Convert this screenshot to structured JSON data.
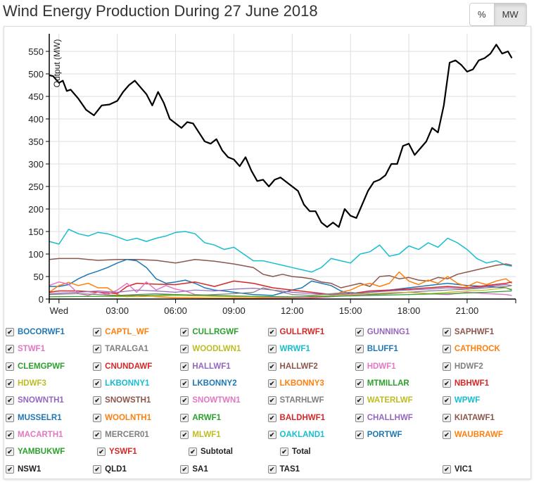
{
  "title": "Wind Energy Production During 27 June 2018",
  "toggle": {
    "percent_label": "%",
    "mw_label": "MW",
    "active": "MW"
  },
  "chart_data": {
    "type": "line",
    "title": "Wind Energy Production During 27 June 2018",
    "ylabel": "Output (MW)",
    "xlabel": "",
    "ylim": [
      0,
      570
    ],
    "xlim_hours": [
      -0.5,
      23.5
    ],
    "yticks": [
      0,
      50,
      100,
      150,
      200,
      250,
      300,
      350,
      400,
      450,
      500,
      550
    ],
    "xticks": [
      {
        "h": 0,
        "label": "Wed"
      },
      {
        "h": 3,
        "label": "03:00"
      },
      {
        "h": 6,
        "label": "06:00"
      },
      {
        "h": 9,
        "label": "09:00"
      },
      {
        "h": 12,
        "label": "12:00"
      },
      {
        "h": 15,
        "label": "15:00"
      },
      {
        "h": 18,
        "label": "18:00"
      },
      {
        "h": 21,
        "label": "21:00"
      }
    ],
    "grid": true,
    "series": [
      {
        "name": "Total",
        "color": "#000000",
        "width": 2.2,
        "x": [
          -0.5,
          -0.3,
          0,
          0.2,
          0.4,
          0.6,
          1.0,
          1.4,
          1.8,
          2.2,
          2.6,
          3.0,
          3.3,
          3.6,
          3.9,
          4.2,
          4.5,
          4.8,
          5.1,
          5.4,
          5.7,
          6.0,
          6.3,
          6.6,
          6.9,
          7.2,
          7.5,
          7.8,
          8.1,
          8.4,
          8.7,
          9.0,
          9.3,
          9.6,
          9.9,
          10.2,
          10.5,
          10.8,
          11.1,
          11.4,
          11.7,
          12.0,
          12.3,
          12.6,
          12.9,
          13.2,
          13.5,
          13.8,
          14.1,
          14.4,
          14.7,
          15.0,
          15.3,
          15.6,
          15.9,
          16.2,
          16.5,
          16.8,
          17.1,
          17.4,
          17.7,
          18.0,
          18.3,
          18.6,
          18.9,
          19.2,
          19.5,
          19.8,
          20.1,
          20.4,
          20.7,
          21.0,
          21.3,
          21.6,
          21.9,
          22.2,
          22.5,
          22.8,
          23.1,
          23.3
        ],
        "y": [
          497,
          495,
          480,
          485,
          462,
          465,
          445,
          420,
          408,
          430,
          432,
          440,
          460,
          475,
          485,
          470,
          455,
          430,
          460,
          435,
          400,
          390,
          380,
          393,
          390,
          370,
          350,
          345,
          355,
          330,
          315,
          310,
          295,
          315,
          285,
          262,
          265,
          250,
          265,
          270,
          260,
          250,
          240,
          210,
          195,
          195,
          170,
          160,
          170,
          160,
          200,
          185,
          180,
          210,
          240,
          260,
          265,
          275,
          300,
          300,
          340,
          345,
          320,
          335,
          350,
          380,
          370,
          430,
          525,
          530,
          520,
          505,
          510,
          530,
          535,
          545,
          565,
          545,
          550,
          535
        ]
      },
      {
        "name": "WPWF",
        "color": "#17becf",
        "width": 1.5,
        "x": [
          -0.5,
          0,
          0.5,
          1,
          1.5,
          2,
          2.5,
          3,
          3.5,
          4,
          4.5,
          5,
          5.5,
          6,
          6.5,
          7,
          7.5,
          8,
          8.5,
          9,
          9.5,
          10,
          10.5,
          11,
          11.5,
          12,
          12.5,
          13,
          13.5,
          14,
          14.5,
          15,
          15.5,
          16,
          16.5,
          17,
          17.5,
          18,
          18.5,
          19,
          19.5,
          20,
          20.5,
          21,
          21.5,
          22,
          22.5,
          23,
          23.3
        ],
        "y": [
          128,
          122,
          155,
          145,
          140,
          148,
          145,
          138,
          130,
          135,
          128,
          135,
          140,
          148,
          150,
          145,
          125,
          120,
          110,
          115,
          100,
          85,
          85,
          80,
          75,
          70,
          65,
          60,
          70,
          90,
          85,
          80,
          100,
          105,
          120,
          95,
          100,
          118,
          110,
          125,
          115,
          135,
          125,
          110,
          90,
          80,
          85,
          75,
          73
        ]
      },
      {
        "name": "SAPHWF1",
        "color": "#8c564b",
        "width": 1.5,
        "x": [
          -0.5,
          0,
          1,
          2,
          3,
          4,
          5,
          6,
          7,
          8,
          9,
          10,
          10.5,
          11,
          11.5,
          12,
          12.5,
          13,
          13.5,
          14,
          14.5,
          15,
          15.5,
          16,
          16.5,
          17,
          17.5,
          18,
          18.5,
          19,
          19.5,
          20,
          20.5,
          21,
          21.5,
          22,
          22.5,
          23,
          23.3
        ],
        "y": [
          88,
          90,
          90,
          86,
          88,
          88,
          86,
          80,
          88,
          84,
          78,
          70,
          55,
          50,
          55,
          50,
          48,
          45,
          38,
          35,
          25,
          30,
          35,
          28,
          50,
          52,
          45,
          48,
          42,
          40,
          48,
          45,
          55,
          60,
          65,
          70,
          75,
          78,
          75
        ]
      },
      {
        "name": "BOCORWF1",
        "color": "#1f77b4",
        "width": 1.5,
        "x": [
          -0.5,
          0,
          0.5,
          1,
          1.5,
          2,
          2.5,
          3,
          3.5,
          4,
          4.5,
          5,
          5.5,
          6,
          6.5,
          7,
          7.5,
          8,
          8.5,
          9,
          10,
          11,
          12,
          12.5,
          13,
          13.5,
          14,
          14.5,
          15,
          16,
          17,
          18,
          19,
          20,
          21,
          22,
          23,
          23.3
        ],
        "y": [
          28,
          28,
          32,
          45,
          55,
          62,
          70,
          80,
          88,
          85,
          70,
          45,
          35,
          38,
          42,
          35,
          25,
          20,
          18,
          15,
          10,
          8,
          20,
          25,
          40,
          35,
          30,
          18,
          12,
          15,
          20,
          25,
          30,
          35,
          30,
          28,
          25,
          20
        ]
      },
      {
        "name": "CATHROCK",
        "color": "#ff7f0e",
        "width": 1.5,
        "x": [
          -0.5,
          0,
          0.5,
          1,
          1.5,
          2,
          2.5,
          3,
          3.5,
          4,
          5,
          6,
          8,
          10,
          12,
          14,
          14.5,
          15,
          15.5,
          16,
          16.5,
          17,
          17.5,
          18,
          18.5,
          19,
          19.5,
          20,
          20.5,
          21,
          21.5,
          22,
          22.5,
          23,
          23.3
        ],
        "y": [
          15,
          30,
          37,
          30,
          35,
          25,
          25,
          10,
          5,
          8,
          5,
          3,
          2,
          2,
          2,
          5,
          15,
          20,
          30,
          35,
          28,
          35,
          60,
          40,
          32,
          42,
          35,
          50,
          35,
          28,
          38,
          32,
          40,
          45,
          35
        ]
      },
      {
        "name": "GULLRWF1",
        "color": "#d62728",
        "width": 1.5,
        "x": [
          -0.5,
          0,
          1,
          2,
          3,
          3.5,
          4,
          5,
          6,
          7,
          8,
          9,
          10,
          11,
          12,
          13,
          14,
          15,
          16,
          17,
          18,
          19,
          20,
          21,
          22,
          23,
          23.3
        ],
        "y": [
          15,
          18,
          18,
          15,
          12,
          28,
          35,
          33,
          32,
          38,
          28,
          40,
          35,
          25,
          20,
          15,
          10,
          12,
          18,
          20,
          22,
          25,
          28,
          25,
          30,
          35,
          38
        ]
      },
      {
        "name": "HDWF1",
        "color": "#e377c2",
        "width": 1.5,
        "x": [
          -0.5,
          0,
          0.5,
          1,
          1.5,
          2,
          2.5,
          3,
          3.5,
          4,
          4.5,
          5,
          5.5,
          6,
          6.5,
          7,
          8,
          9,
          10,
          11,
          12,
          13,
          14,
          15,
          16,
          17,
          18,
          19,
          20,
          21,
          22,
          23,
          23.3
        ],
        "y": [
          30,
          38,
          33,
          12,
          8,
          15,
          10,
          20,
          35,
          15,
          38,
          20,
          30,
          22,
          18,
          10,
          8,
          5,
          5,
          3,
          3,
          2,
          5,
          8,
          10,
          12,
          15,
          12,
          10,
          15,
          12,
          10,
          8
        ]
      },
      {
        "name": "GUNNING1",
        "color": "#9467bd",
        "width": 1.2,
        "x": [
          -0.5,
          1,
          2,
          3,
          4,
          5,
          6,
          7,
          8,
          9,
          10,
          11,
          12,
          13,
          14,
          15,
          16,
          17,
          18,
          19,
          20,
          21,
          22,
          23,
          23.3
        ],
        "y": [
          12,
          15,
          18,
          15,
          20,
          18,
          15,
          20,
          18,
          22,
          24,
          20,
          15,
          12,
          10,
          12,
          15,
          18,
          20,
          22,
          25,
          22,
          28,
          32,
          30
        ]
      },
      {
        "name": "TARALGA1",
        "color": "#7f7f7f",
        "width": 1.2,
        "x": [
          -0.5,
          1,
          2,
          3,
          4,
          5,
          6,
          7,
          8,
          9,
          10,
          10.5,
          11,
          12,
          13,
          14,
          15,
          16,
          17,
          18,
          19,
          20,
          21,
          22,
          23,
          23.3
        ],
        "y": [
          10,
          12,
          10,
          8,
          10,
          12,
          10,
          8,
          10,
          12,
          15,
          25,
          20,
          10,
          8,
          12,
          15,
          10,
          12,
          15,
          18,
          20,
          22,
          25,
          28,
          30
        ]
      },
      {
        "name": "WOODLWN1",
        "color": "#bcbd22",
        "width": 1.2,
        "x": [
          -0.5,
          2,
          4,
          6,
          8,
          10,
          12,
          14,
          15,
          16,
          17,
          18,
          19,
          20,
          21,
          22,
          23,
          23.3
        ],
        "y": [
          5,
          6,
          5,
          8,
          6,
          5,
          4,
          8,
          10,
          12,
          14,
          15,
          12,
          15,
          18,
          20,
          25,
          22
        ]
      },
      {
        "name": "CLEMGPWF",
        "color": "#2ca02c",
        "width": 1.2,
        "x": [
          -0.5,
          2,
          4,
          6,
          8,
          10,
          12,
          14,
          16,
          18,
          20,
          22,
          23.3
        ],
        "y": [
          5,
          6,
          8,
          10,
          8,
          6,
          5,
          6,
          8,
          10,
          12,
          15,
          18
        ]
      }
    ],
    "legend": {
      "placement": "bottom",
      "rows": [
        [
          {
            "name": "BOCORWF1",
            "color": "#1f77b4"
          },
          {
            "name": "CAPTL_WF",
            "color": "#ff7f0e"
          },
          {
            "name": "CULLRGWF",
            "color": "#2ca02c"
          },
          {
            "name": "GULLRWF1",
            "color": "#d62728"
          },
          {
            "name": "GUNNING1",
            "color": "#9467bd"
          },
          {
            "name": "SAPHWF1",
            "color": "#8c564b"
          }
        ],
        [
          {
            "name": "STWF1",
            "color": "#e377c2"
          },
          {
            "name": "TARALGA1",
            "color": "#7f7f7f"
          },
          {
            "name": "WOODLWN1",
            "color": "#bcbd22"
          },
          {
            "name": "WRWF1",
            "color": "#17becf"
          },
          {
            "name": "BLUFF1",
            "color": "#1f77b4"
          },
          {
            "name": "CATHROCK",
            "color": "#ff7f0e"
          }
        ],
        [
          {
            "name": "CLEMGPWF",
            "color": "#2ca02c"
          },
          {
            "name": "CNUNDAWF",
            "color": "#d62728"
          },
          {
            "name": "HALLWF1",
            "color": "#9467bd"
          },
          {
            "name": "HALLWF2",
            "color": "#8c564b"
          },
          {
            "name": "HDWF1",
            "color": "#e377c2"
          },
          {
            "name": "HDWF2",
            "color": "#7f7f7f"
          }
        ],
        [
          {
            "name": "HDWF3",
            "color": "#bcbd22"
          },
          {
            "name": "LKBONNY1",
            "color": "#17becf"
          },
          {
            "name": "LKBONNY2",
            "color": "#1f77b4"
          },
          {
            "name": "LKBONNY3",
            "color": "#ff7f0e"
          },
          {
            "name": "MTMILLAR",
            "color": "#2ca02c"
          },
          {
            "name": "NBHWF1",
            "color": "#d62728"
          }
        ],
        [
          {
            "name": "SNOWNTH1",
            "color": "#9467bd"
          },
          {
            "name": "SNOWSTH1",
            "color": "#8c564b"
          },
          {
            "name": "SNOWTWN1",
            "color": "#e377c2"
          },
          {
            "name": "STARHLWF",
            "color": "#7f7f7f"
          },
          {
            "name": "WATERLWF",
            "color": "#bcbd22"
          },
          {
            "name": "WPWF",
            "color": "#17becf"
          }
        ],
        [
          {
            "name": "MUSSELR1",
            "color": "#1f77b4"
          },
          {
            "name": "WOOLNTH1",
            "color": "#ff7f0e"
          },
          {
            "name": "ARWF1",
            "color": "#2ca02c"
          },
          {
            "name": "BALDHWF1",
            "color": "#d62728"
          },
          {
            "name": "CHALLHWF",
            "color": "#9467bd"
          },
          {
            "name": "KIATAWF1",
            "color": "#8c564b"
          }
        ],
        [
          {
            "name": "MACARTH1",
            "color": "#e377c2"
          },
          {
            "name": "MERCER01",
            "color": "#7f7f7f"
          },
          {
            "name": "MLWF1",
            "color": "#bcbd22"
          },
          {
            "name": "OAKLAND1",
            "color": "#17becf"
          },
          {
            "name": "PORTWF",
            "color": "#1f77b4"
          },
          {
            "name": "WAUBRAWF",
            "color": "#ff7f0e"
          }
        ],
        [
          {
            "name": "YAMBUKWF",
            "color": "#2ca02c"
          },
          {
            "name": "YSWF1",
            "color": "#d62728"
          },
          {
            "name": "Subtotal",
            "color": "#222222"
          },
          {
            "name": "Total",
            "color": "#222222"
          }
        ],
        [
          {
            "name": "NSW1",
            "color": "#222222"
          },
          {
            "name": "QLD1",
            "color": "#222222"
          },
          {
            "name": "SA1",
            "color": "#222222"
          },
          {
            "name": "TAS1",
            "color": "#222222"
          },
          {
            "name": "",
            "color": "#222222",
            "blank": true
          },
          {
            "name": "VIC1",
            "color": "#222222"
          }
        ]
      ]
    }
  }
}
